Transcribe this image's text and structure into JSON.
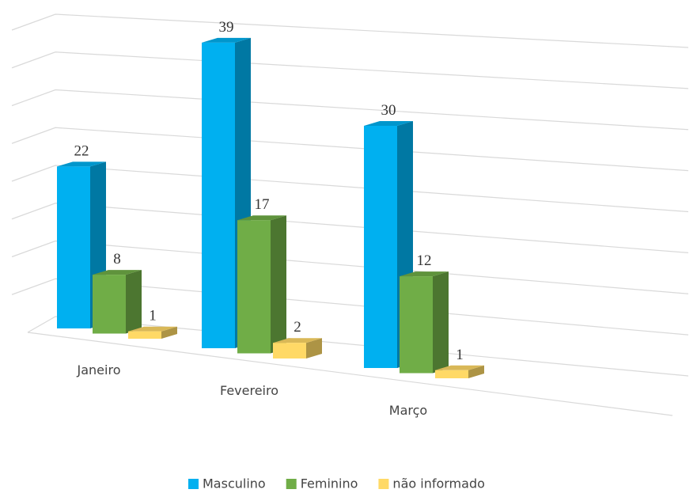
{
  "chart_data": {
    "type": "bar3d",
    "categories": [
      "Janeiro",
      "Fevereiro",
      "Março"
    ],
    "series": [
      {
        "name": "Masculino",
        "color": "#00b0f0",
        "values": [
          22,
          39,
          30
        ]
      },
      {
        "name": "Feminino",
        "color": "#70ad47",
        "values": [
          8,
          17,
          12
        ]
      },
      {
        "name": "não informado",
        "color": "#ffd966",
        "values": [
          1,
          2,
          1
        ]
      }
    ],
    "ylim": [
      0,
      40
    ],
    "yticks": [
      0,
      5,
      10,
      15,
      20,
      25,
      30,
      35,
      40
    ],
    "grid": true,
    "legend": "bottom"
  }
}
